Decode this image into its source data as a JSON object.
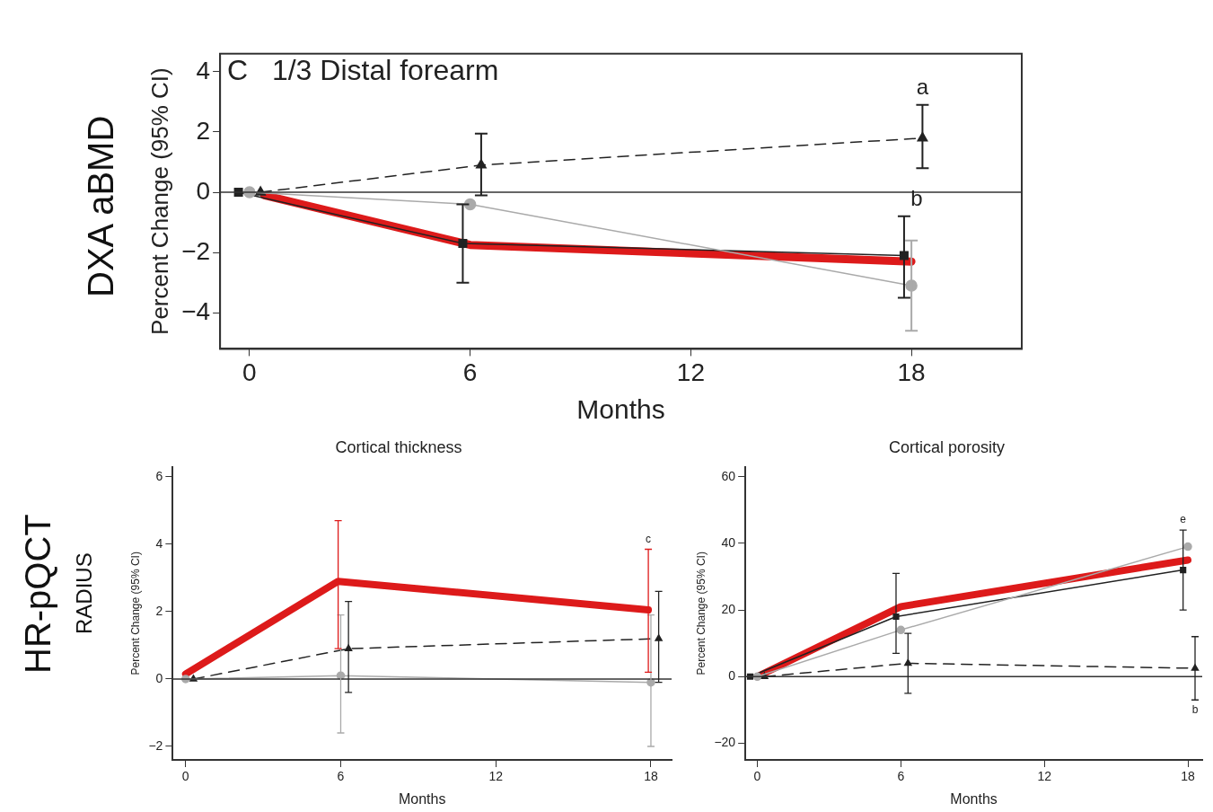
{
  "chart_data": [
    {
      "type": "line",
      "title": "C   1/3 Distal forearm",
      "xlabel": "Months",
      "ylabel": "Percent Change (95% CI)",
      "xlim": [
        -0.8,
        21
      ],
      "xticks": [
        0,
        6,
        12,
        18
      ],
      "ylim": [
        -5.2,
        4.6
      ],
      "yticks": [
        -4,
        -2,
        0,
        2,
        4
      ],
      "grid": false,
      "legend": false,
      "series": [
        {
          "color": "#aaaaaa",
          "x": [
            0,
            6,
            18
          ],
          "values": [
            0,
            -0.4,
            -3.1
          ],
          "errors": [
            null,
            null,
            [
              -4.6,
              -1.6
            ]
          ],
          "marker": "circle",
          "line_style": "solid"
        },
        {
          "color": "#222222",
          "x": [
            0.3,
            6.3,
            18.3
          ],
          "values": [
            0,
            0.9,
            1.8
          ],
          "errors": [
            null,
            [
              -0.1,
              1.95
            ],
            [
              0.8,
              2.9
            ]
          ],
          "marker": "triangle",
          "line_style": "dashed"
        },
        {
          "color": "#222222",
          "x": [
            -0.3,
            5.8,
            17.8
          ],
          "values": [
            0,
            -1.7,
            -2.1
          ],
          "errors": [
            null,
            [
              -3,
              -0.4
            ],
            [
              -3.5,
              -0.8
            ]
          ],
          "marker": "square",
          "line_style": "solid"
        },
        {
          "color": "#dd1a1a",
          "x": [
            0.4,
            6,
            18
          ],
          "values": [
            -0.1,
            -1.75,
            -2.3
          ],
          "marker": "none",
          "line_style": "solid"
        }
      ],
      "ref_lines": [
        {
          "axis": "y",
          "value": 0
        }
      ],
      "annotations": [
        "DXA aBMD",
        {
          "text": "a",
          "x": 18.3,
          "y": 2.9
        },
        {
          "text": "b",
          "x": 17.8,
          "y": -0.8
        }
      ]
    },
    {
      "type": "line",
      "title": "Cortical thickness",
      "xlabel": "Months",
      "ylabel": "Percent Change (95% CI)",
      "xlim": [
        -0.5,
        18.8
      ],
      "xticks": [
        0,
        6,
        12,
        18
      ],
      "ylim": [
        -2.4,
        6.3
      ],
      "yticks": [
        -2,
        0,
        2,
        4,
        6
      ],
      "grid": false,
      "legend": false,
      "series": [
        {
          "color": "#aaaaaa",
          "x": [
            0,
            6,
            18
          ],
          "values": [
            0,
            0.1,
            -0.1
          ],
          "errors": [
            null,
            [
              -1.6,
              1.9
            ],
            [
              -2,
              1.9
            ]
          ],
          "marker": "circle",
          "line_style": "solid"
        },
        {
          "color": "#222222",
          "x": [
            0.3,
            6.3,
            18.3
          ],
          "values": [
            0,
            0.9,
            1.2
          ],
          "errors": [
            null,
            [
              -0.4,
              2.3
            ],
            [
              -0.1,
              2.6
            ]
          ],
          "marker": "triangle",
          "line_style": "dashed"
        },
        {
          "color": "#dd1a1a",
          "x": [
            0,
            5.9,
            17.9
          ],
          "values": [
            0.15,
            2.9,
            2.05
          ],
          "errors": [
            null,
            [
              0.9,
              4.7
            ],
            [
              0.2,
              3.85
            ]
          ],
          "marker": "none",
          "line_style": "solid"
        }
      ],
      "ref_lines": [
        {
          "axis": "y",
          "value": 0
        }
      ],
      "annotations": [
        "HR-pQCT",
        "RADIUS",
        {
          "text": "c",
          "x": 17.9,
          "y": 3.85
        }
      ]
    },
    {
      "type": "line",
      "title": "Cortical porosity",
      "xlabel": "Months",
      "ylabel": "Percent Change (95% CI)",
      "xlim": [
        -0.5,
        18.6
      ],
      "xticks": [
        0,
        6,
        12,
        18
      ],
      "ylim": [
        -25,
        63
      ],
      "yticks": [
        -20,
        0,
        20,
        40,
        60
      ],
      "grid": false,
      "legend": false,
      "series": [
        {
          "color": "#aaaaaa",
          "x": [
            0,
            6,
            18
          ],
          "values": [
            0,
            14,
            39
          ],
          "marker": "circle",
          "line_style": "solid"
        },
        {
          "color": "#222222",
          "x": [
            0.3,
            6.3,
            18.3
          ],
          "values": [
            0,
            4,
            2.5
          ],
          "errors": [
            null,
            [
              -5,
              13
            ],
            [
              -7,
              12
            ]
          ],
          "marker": "triangle",
          "line_style": "dashed"
        },
        {
          "color": "#222222",
          "x": [
            -0.3,
            5.8,
            17.8
          ],
          "values": [
            0,
            18,
            32
          ],
          "errors": [
            null,
            [
              7,
              31
            ],
            [
              20,
              44
            ]
          ],
          "marker": "square",
          "line_style": "solid"
        },
        {
          "color": "#dd1a1a",
          "x": [
            0,
            6,
            18
          ],
          "values": [
            0,
            21,
            35
          ],
          "marker": "none",
          "line_style": "solid"
        }
      ],
      "ref_lines": [
        {
          "axis": "y",
          "value": 0
        }
      ],
      "annotations": [
        {
          "text": "e",
          "x": 17.8,
          "y": 44
        },
        {
          "text": "b",
          "x": 18.3,
          "y": -7
        }
      ]
    }
  ]
}
